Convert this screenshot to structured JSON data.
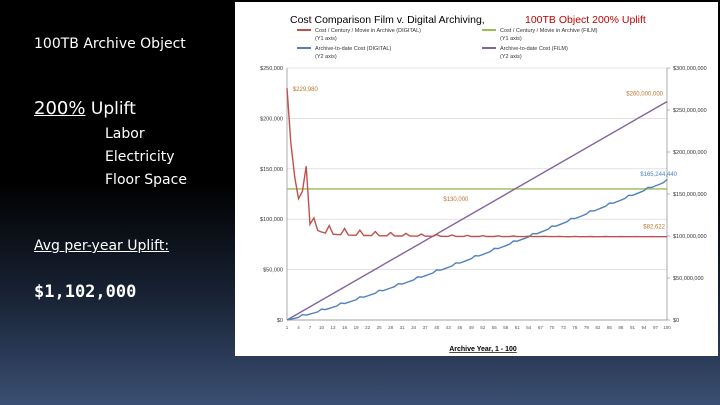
{
  "slide": {
    "title": "100TB Archive Object",
    "uplift_percent": "200%",
    "uplift_word": "Uplift",
    "factors": [
      "Labor",
      "Electricity",
      "Floor Space"
    ],
    "avg_label": "Avg per-year Uplift:",
    "avg_value": "$1,102,000"
  },
  "chart_data": {
    "type": "line",
    "title_black": "Cost Comparison Film v. Digital Archiving,",
    "title_red": "100TB Object   200% Uplift",
    "xlabel": "Archive Year, 1 - 100",
    "x_start": 1,
    "x_end": 100,
    "left_axis": {
      "min": 0,
      "max": 250000,
      "ticks": [
        "$0",
        "$50,000",
        "$100,000",
        "$150,000",
        "$200,000",
        "$250,000"
      ]
    },
    "right_axis": {
      "min": 0,
      "max": 300000000,
      "ticks": [
        "$0",
        "$50,000,000",
        "$100,000,000",
        "$150,000,000",
        "$200,000,000",
        "$250,000,000",
        "$300,000,000"
      ]
    },
    "legend": [
      {
        "name": "Cost / Century / Movie in Archive (DIGITAL)",
        "sub": "(Y1 axis)",
        "color": "#c0504d"
      },
      {
        "name": "Cost / Century / Movie in Archive (FILM)",
        "sub": "(Y1 axis)",
        "color": "#9bbb59"
      },
      {
        "name": "Archive-to-date Cost (DIGITAL)",
        "sub": "(Y2 axis)",
        "color": "#4f81bd"
      },
      {
        "name": "Archive-to-date Cost (FILM)",
        "sub": "(Y2 axis)",
        "color": "#8064a2"
      }
    ],
    "series": [
      {
        "name": "Cost / Century / Movie in Archive (DIGITAL)",
        "axis": "left",
        "color": "#c0504d",
        "start_value": 229980,
        "end_value": 82622
      },
      {
        "name": "Cost / Century / Movie in Archive (FILM)",
        "axis": "left",
        "color": "#9bbb59",
        "constant_value": 130000
      },
      {
        "name": "Archive-to-date Cost (DIGITAL)",
        "axis": "right",
        "color": "#4f81bd",
        "end_value": 165244440
      },
      {
        "name": "Archive-to-date Cost (FILM)",
        "axis": "right",
        "color": "#8064a2",
        "end_value": 260000000
      }
    ],
    "annotations": [
      "$229,980",
      "$260,000,000",
      "$165,244,440",
      "$130,000",
      "$82,622"
    ]
  }
}
